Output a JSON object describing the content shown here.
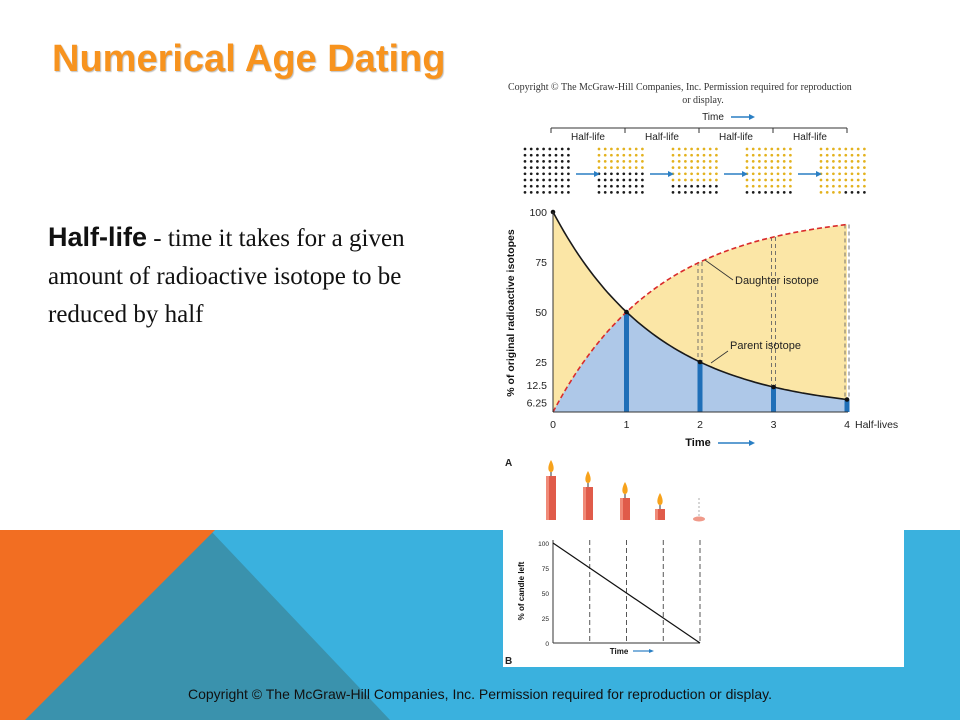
{
  "slide": {
    "title": "Numerical Age Dating",
    "definition": {
      "term": "Half-life",
      "text": " - time it takes for a given amount of radioactive isotope to be reduced by half"
    },
    "footer": "Copyright © The McGraw-Hill Companies, Inc. Permission required for reproduction or display.",
    "colors": {
      "title": "#f7931e",
      "band_blue": "#3ab1de",
      "orange": "#f26e22",
      "teal": "#3a92ad"
    }
  },
  "figure": {
    "copyright_line1": "Copyright © The McGraw-Hill Companies, Inc. Permission required for reproduction",
    "copyright_line2": "or display.",
    "time_label": "Time",
    "half_life_labels": [
      "Half-life",
      "Half-life",
      "Half-life",
      "Half-life"
    ],
    "panel_a_label": "A",
    "panel_b_label": "B"
  },
  "chart_data": [
    {
      "type": "line",
      "ylabel": "% of original radioactive isotopes",
      "xlabel": "Time",
      "x_axis_end_label": "Half-lives",
      "x_ticks": [
        "0",
        "1",
        "2",
        "3",
        "4"
      ],
      "y_ticks": [
        "100",
        "75",
        "50",
        "25",
        "12.5",
        "6.25"
      ],
      "series": [
        {
          "name": "Parent isotope",
          "x": [
            0,
            1,
            2,
            3,
            4
          ],
          "values": [
            100,
            50,
            25,
            12.5,
            6.25
          ],
          "color": "#1a1a1a"
        },
        {
          "name": "Daughter isotope",
          "x": [
            0,
            1,
            2,
            3,
            4
          ],
          "values": [
            0,
            50,
            75,
            87.5,
            93.75
          ],
          "color": "#d92b2b"
        }
      ],
      "fill_colors": {
        "parent": "#aec8e8",
        "daughter": "#fbe6a6"
      }
    },
    {
      "type": "line",
      "ylabel": "% of candle left",
      "xlabel": "Time",
      "y_ticks": [
        "100",
        "75",
        "50",
        "25",
        "0"
      ],
      "series": [
        {
          "name": "",
          "x": [
            0,
            1,
            2,
            3,
            4
          ],
          "values": [
            100,
            75,
            50,
            25,
            0
          ]
        }
      ]
    }
  ]
}
